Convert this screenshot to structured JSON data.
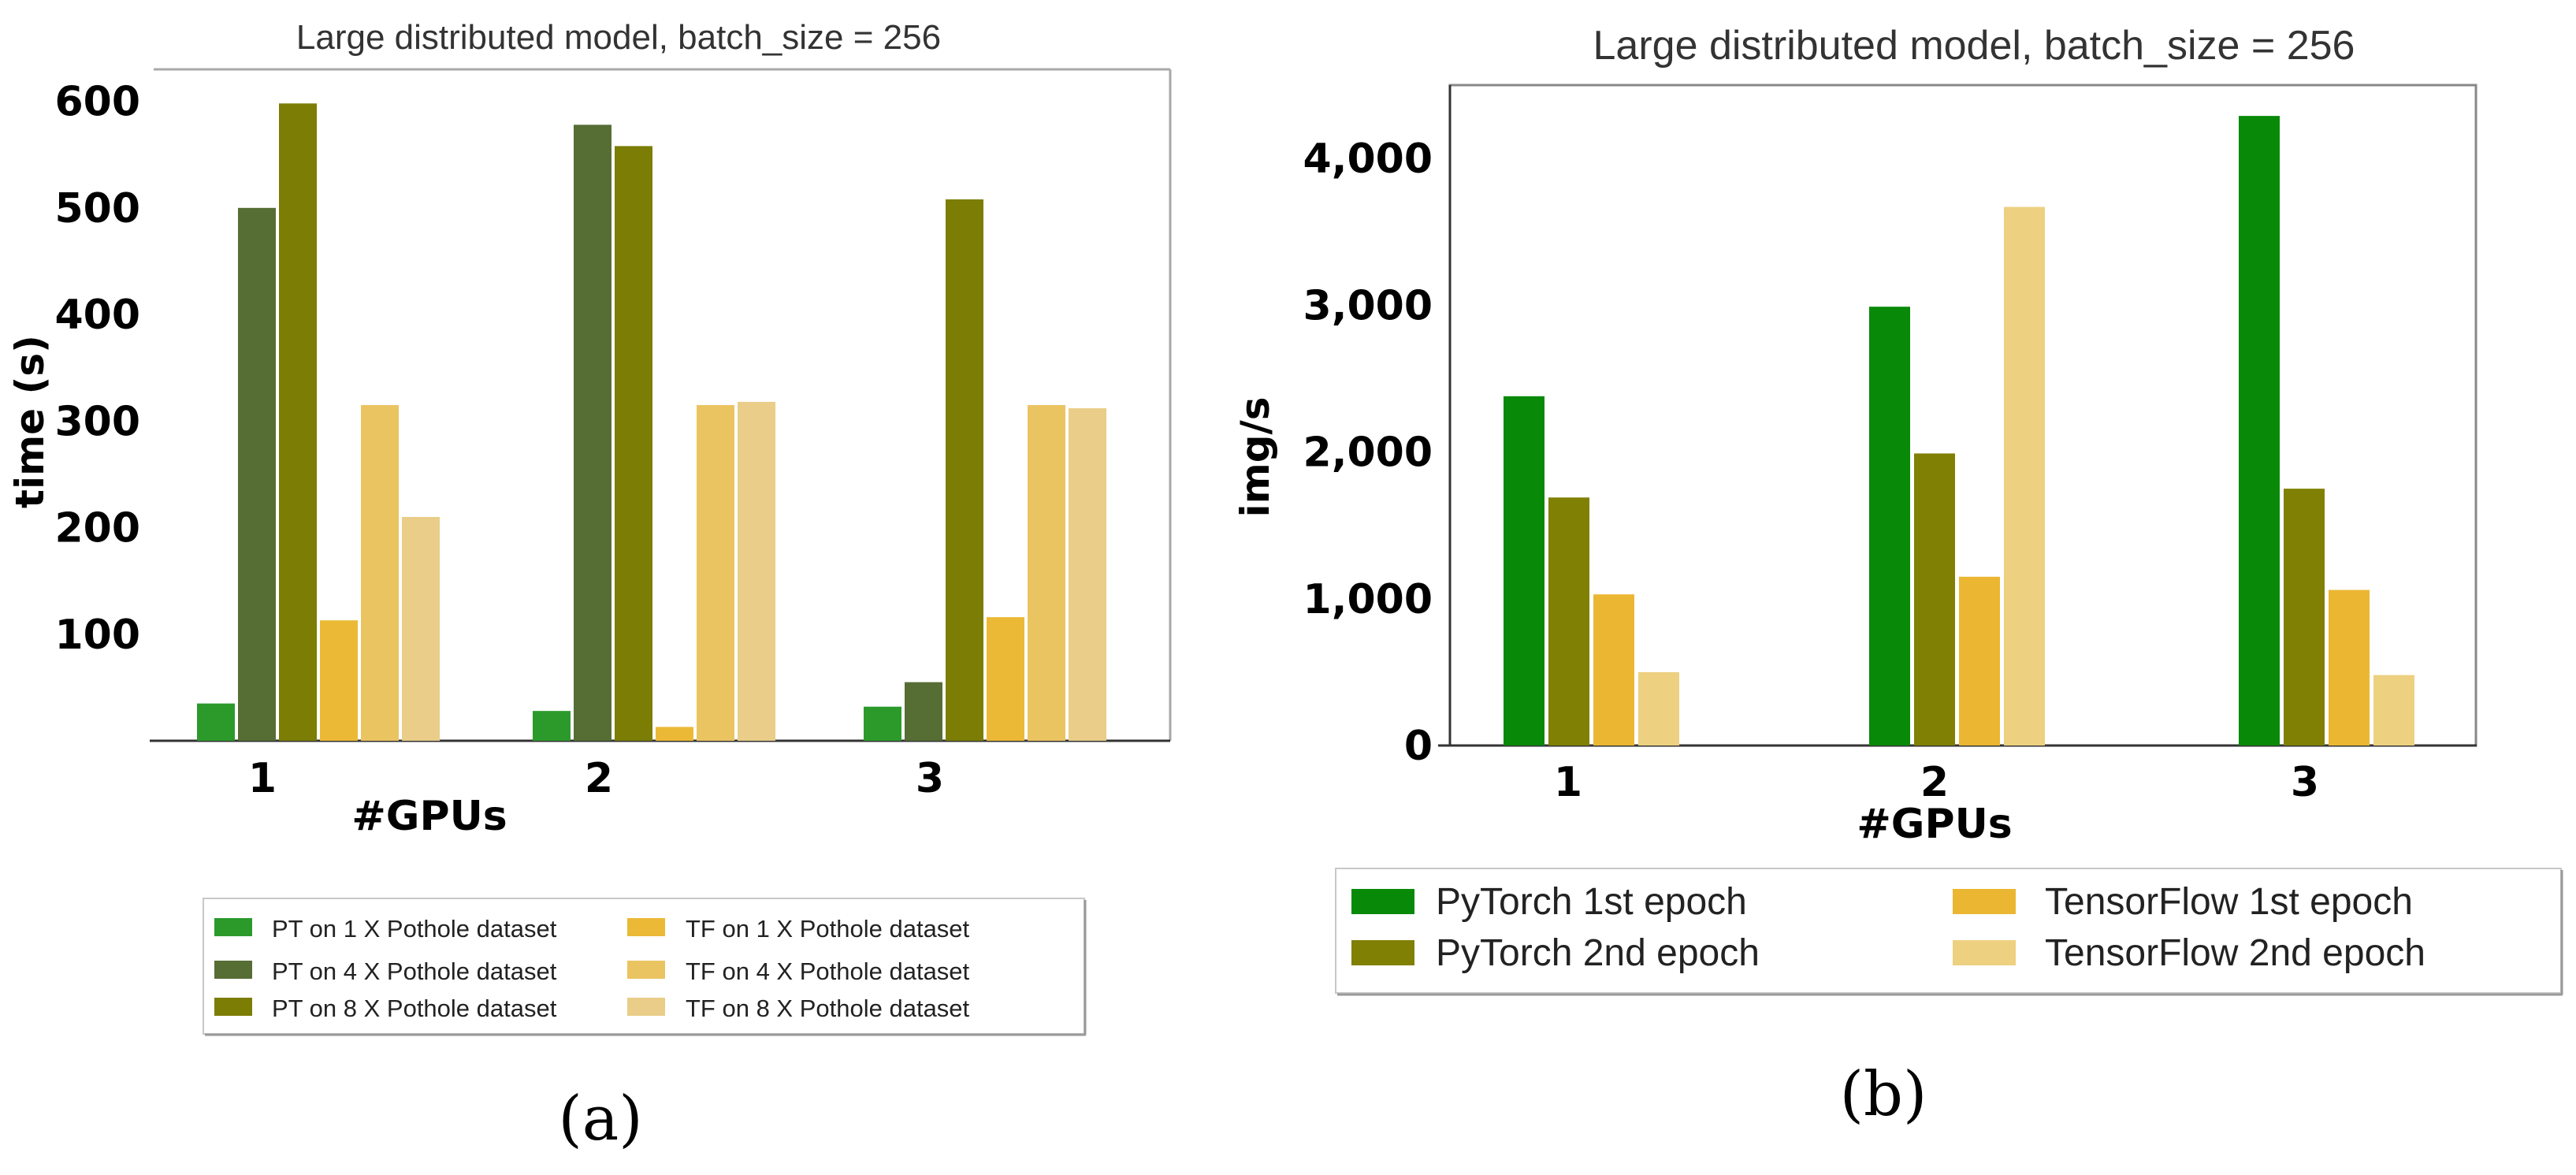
{
  "chart_data": [
    {
      "type": "bar",
      "panel_caption": "(a)",
      "title": "Large distributed model, batch_size = 256",
      "xlabel": "#GPUs",
      "ylabel": "time (s)",
      "categories": [
        "1",
        "2",
        "3"
      ],
      "ylim": [
        0,
        630
      ],
      "yticks": [
        100,
        200,
        300,
        400,
        500,
        600
      ],
      "grid": false,
      "legend_position": "bottom",
      "series": [
        {
          "name": "PT on 1 X Pothole dataset",
          "color": "#2b9a2b",
          "values": [
            35,
            28,
            32
          ]
        },
        {
          "name": "PT on 4 X Pothole dataset",
          "color": "#566d34",
          "values": [
            500,
            578,
            55
          ]
        },
        {
          "name": "PT on 8 X Pothole dataset",
          "color": "#7b7d05",
          "values": [
            598,
            558,
            508
          ]
        },
        {
          "name": "TF on 1 X Pothole dataset",
          "color": "#ebb935",
          "values": [
            113,
            13,
            116
          ]
        },
        {
          "name": "TF on 4 X Pothole dataset",
          "color": "#ebc462",
          "values": [
            315,
            315,
            315
          ]
        },
        {
          "name": "TF on 8 X Pothole dataset",
          "color": "#e9cd88",
          "values": [
            210,
            318,
            312
          ]
        }
      ]
    },
    {
      "type": "bar",
      "panel_caption": "(b)",
      "title": "Large distributed model, batch_size = 256",
      "xlabel": "#GPUs",
      "ylabel": "img/s",
      "categories": [
        "1",
        "2",
        "3"
      ],
      "ylim": [
        0,
        4500
      ],
      "yticks": [
        "0",
        "1,000",
        "2,000",
        "3,000",
        "4,000"
      ],
      "grid": false,
      "legend_position": "bottom",
      "series": [
        {
          "name": "PyTorch 1st epoch",
          "color": "#088908",
          "values": [
            2380,
            2990,
            4290
          ]
        },
        {
          "name": "PyTorch 2nd epoch",
          "color": "#808005",
          "values": [
            1690,
            1990,
            1750
          ]
        },
        {
          "name": "TensorFlow 1st epoch",
          "color": "#ebb733",
          "values": [
            1030,
            1150,
            1060
          ]
        },
        {
          "name": "TensorFlow 2nd epoch",
          "color": "#edd080",
          "values": [
            500,
            3670,
            480
          ]
        }
      ]
    }
  ]
}
